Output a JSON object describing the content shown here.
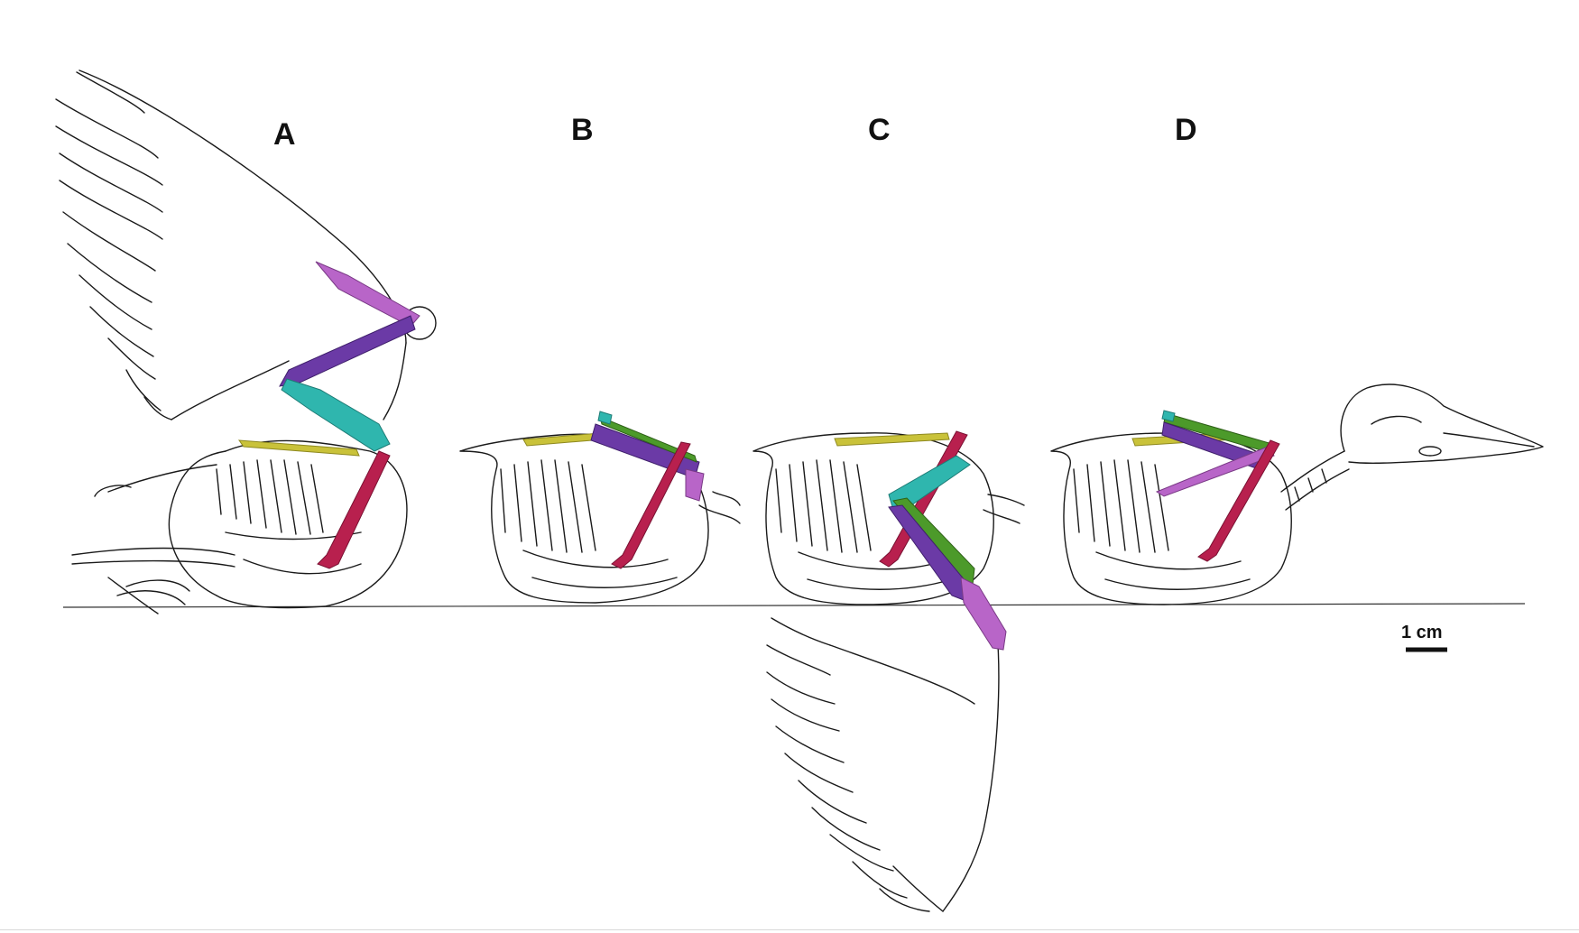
{
  "panels": [
    {
      "label": "A"
    },
    {
      "label": "B"
    },
    {
      "label": "C"
    },
    {
      "label": "D"
    }
  ],
  "scale_bar": {
    "label": "1 cm"
  },
  "colors": {
    "cyan_bone": "#2fb6ae",
    "purple_bone": "#6b3aa6",
    "magenta_bone": "#b865c8",
    "crimson_bone": "#b8204e",
    "green_bone": "#4c9a2a",
    "yellow_bone": "#c9c23a",
    "ink": "#1a1a1a"
  }
}
